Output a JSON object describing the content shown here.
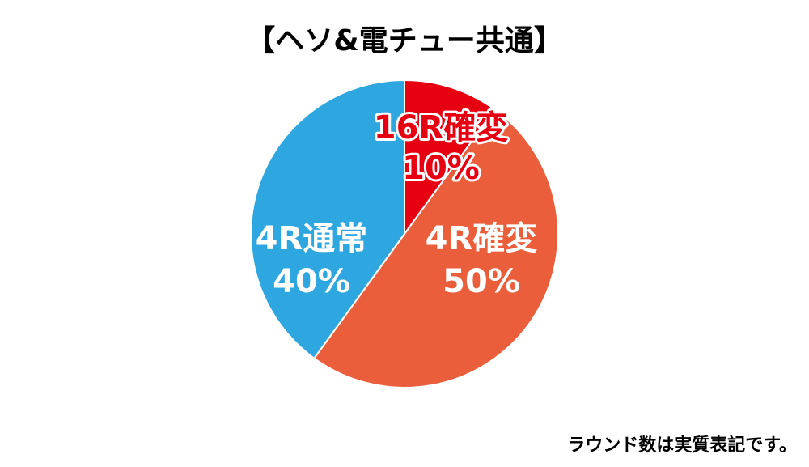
{
  "chart_data": {
    "type": "pie",
    "title": "【ヘソ&電チュー共通】",
    "categories": [
      "16R確変",
      "4R確変",
      "4R通常"
    ],
    "values": [
      10,
      50,
      40
    ],
    "value_labels": [
      "10%",
      "50%",
      "40%"
    ],
    "colors": [
      "#e60012",
      "#ea5e3b",
      "#2ea7e0"
    ],
    "note": "ラウンド数は実質表記です。"
  }
}
